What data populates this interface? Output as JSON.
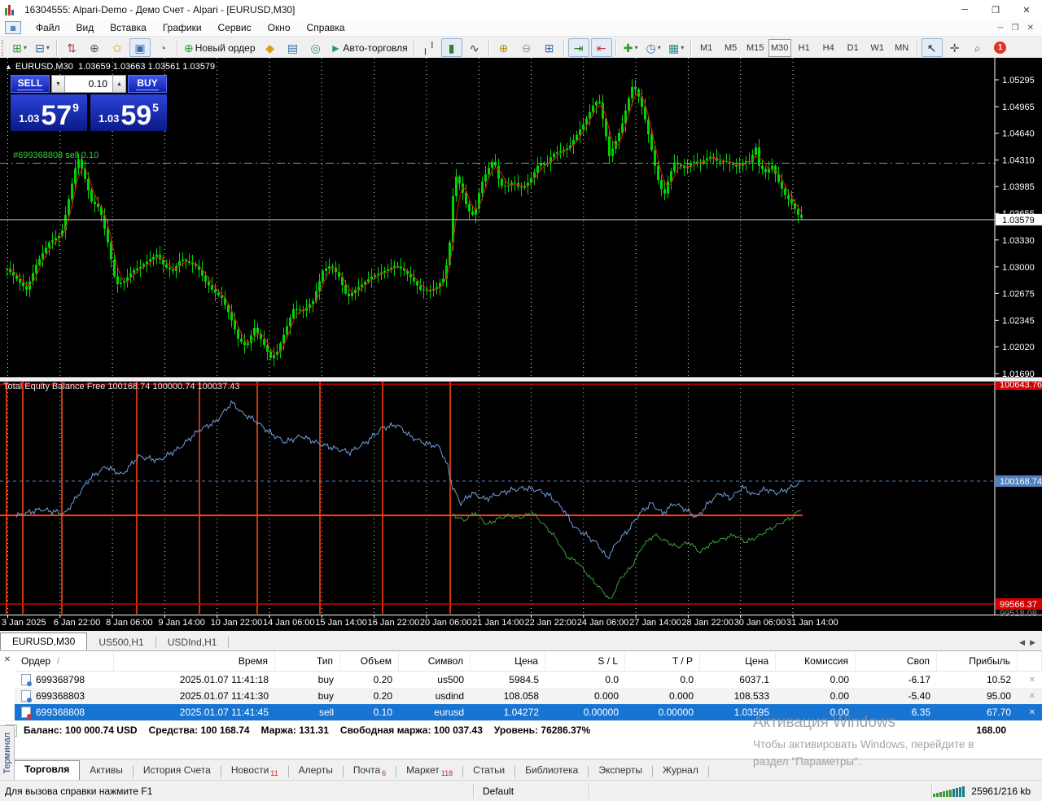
{
  "window": {
    "title": "16304555: Alpari-Demo - Демо Счет - Alpari - [EURUSD,M30]",
    "controls": {
      "minimize": "─",
      "restore": "❐",
      "close": "✕"
    }
  },
  "menu": {
    "items": [
      "Файл",
      "Вид",
      "Вставка",
      "Графики",
      "Сервис",
      "Окно",
      "Справка"
    ]
  },
  "toolbar": {
    "new_order_label": "Новый ордер",
    "auto_trading_label": "Авто-торговля",
    "timeframes": [
      "M1",
      "M5",
      "M15",
      "M30",
      "H1",
      "H4",
      "D1",
      "W1",
      "MN"
    ],
    "active_timeframe": "M30",
    "notification_count": "1"
  },
  "chart": {
    "symbol": "EURUSD,M30",
    "ohlc": "1.03659 1.03663 1.03561 1.03579",
    "position_label": "#699368808 sell 0.10",
    "trade_line_price": 1.04272,
    "current_price": 1.03579,
    "current_price_label": "1.03579",
    "price_axis_ticks": [
      "1.05295",
      "1.04965",
      "1.04640",
      "1.04310",
      "1.03985",
      "1.03655",
      "1.03330",
      "1.03000",
      "1.02675",
      "1.02345",
      "1.02020",
      "1.01690"
    ],
    "price_axis_range": {
      "max": 1.05295,
      "min": 1.0169
    },
    "time_axis": [
      "3 Jan 2025",
      "6 Jan 22:00",
      "8 Jan 06:00",
      "9 Jan 14:00",
      "10 Jan 22:00",
      "14 Jan 06:00",
      "15 Jan 14:00",
      "16 Jan 22:00",
      "20 Jan 06:00",
      "21 Jan 14:00",
      "22 Jan 22:00",
      "24 Jan 06:00",
      "27 Jan 14:00",
      "28 Jan 22:00",
      "30 Jan 06:00",
      "31 Jan 14:00"
    ],
    "candle_anchors": [
      [
        8,
        1.0298
      ],
      [
        20,
        1.0285
      ],
      [
        32,
        1.0272
      ],
      [
        45,
        1.0305
      ],
      [
        60,
        1.033
      ],
      [
        75,
        1.034
      ],
      [
        88,
        1.0402
      ],
      [
        95,
        1.0435
      ],
      [
        102,
        1.0415
      ],
      [
        112,
        1.038
      ],
      [
        122,
        1.0372
      ],
      [
        132,
        1.033
      ],
      [
        142,
        1.0278
      ],
      [
        152,
        1.0282
      ],
      [
        162,
        1.0295
      ],
      [
        172,
        1.03
      ],
      [
        182,
        1.0308
      ],
      [
        192,
        1.0315
      ],
      [
        202,
        1.03
      ],
      [
        212,
        1.0295
      ],
      [
        222,
        1.031
      ],
      [
        232,
        1.0305
      ],
      [
        242,
        1.03
      ],
      [
        252,
        1.0282
      ],
      [
        262,
        1.027
      ],
      [
        272,
        1.0262
      ],
      [
        282,
        1.024
      ],
      [
        292,
        1.0212
      ],
      [
        302,
        1.0202
      ],
      [
        312,
        1.0225
      ],
      [
        322,
        1.0208
      ],
      [
        332,
        1.0188
      ],
      [
        340,
        1.0196
      ],
      [
        350,
        1.0222
      ],
      [
        360,
        1.0248
      ],
      [
        372,
        1.0246
      ],
      [
        384,
        1.0258
      ],
      [
        396,
        1.0295
      ],
      [
        406,
        1.0302
      ],
      [
        416,
        1.0288
      ],
      [
        426,
        1.0262
      ],
      [
        436,
        1.0272
      ],
      [
        446,
        1.028
      ],
      [
        456,
        1.0288
      ],
      [
        466,
        1.0292
      ],
      [
        476,
        1.0297
      ],
      [
        486,
        1.0302
      ],
      [
        496,
        1.0295
      ],
      [
        506,
        1.0285
      ],
      [
        516,
        1.0272
      ],
      [
        526,
        1.027
      ],
      [
        536,
        1.0275
      ],
      [
        546,
        1.0288
      ],
      [
        552,
        1.033
      ],
      [
        558,
        1.0415
      ],
      [
        566,
        1.0398
      ],
      [
        574,
        1.037
      ],
      [
        582,
        1.0362
      ],
      [
        590,
        1.04
      ],
      [
        598,
        1.0418
      ],
      [
        606,
        1.0432
      ],
      [
        614,
        1.04
      ],
      [
        622,
        1.0398
      ],
      [
        630,
        1.0405
      ],
      [
        638,
        1.0396
      ],
      [
        646,
        1.04
      ],
      [
        654,
        1.0412
      ],
      [
        662,
        1.0428
      ],
      [
        670,
        1.0424
      ],
      [
        678,
        1.0438
      ],
      [
        688,
        1.0442
      ],
      [
        698,
        1.0446
      ],
      [
        708,
        1.0462
      ],
      [
        718,
        1.0478
      ],
      [
        728,
        1.0498
      ],
      [
        735,
        1.0506
      ],
      [
        742,
        1.0472
      ],
      [
        748,
        1.0436
      ],
      [
        755,
        1.0452
      ],
      [
        763,
        1.0472
      ],
      [
        770,
        1.05
      ],
      [
        777,
        1.0524
      ],
      [
        783,
        1.0512
      ],
      [
        790,
        1.049
      ],
      [
        797,
        1.0458
      ],
      [
        804,
        1.0424
      ],
      [
        810,
        1.0398
      ],
      [
        816,
        1.039
      ],
      [
        822,
        1.0412
      ],
      [
        828,
        1.0428
      ],
      [
        835,
        1.0424
      ],
      [
        842,
        1.042
      ],
      [
        850,
        1.043
      ],
      [
        858,
        1.0426
      ],
      [
        866,
        1.0432
      ],
      [
        874,
        1.0436
      ],
      [
        882,
        1.0428
      ],
      [
        890,
        1.043
      ],
      [
        898,
        1.0426
      ],
      [
        906,
        1.0422
      ],
      [
        914,
        1.043
      ],
      [
        922,
        1.0428
      ],
      [
        927,
        1.0452
      ],
      [
        932,
        1.0424
      ],
      [
        940,
        1.0416
      ],
      [
        948,
        1.0424
      ],
      [
        956,
        1.0404
      ],
      [
        964,
        1.0388
      ],
      [
        972,
        1.0378
      ],
      [
        980,
        1.0364
      ],
      [
        986,
        1.0358
      ]
    ],
    "colors": {
      "candle": "#00d400",
      "ma_line": "#e81212",
      "grid": "#ffffff",
      "trade_line": "#2fce4a",
      "current_line": "#b9c7d6"
    }
  },
  "trade_panel": {
    "sell_label": "SELL",
    "buy_label": "BUY",
    "volume": "0.10",
    "sell_prefix": "1.03",
    "sell_big": "57",
    "sell_sup": "9",
    "buy_prefix": "1.03",
    "buy_big": "59",
    "buy_sup": "5",
    "spin_down": "▼",
    "spin_up": "▲"
  },
  "equity_pane": {
    "label": "Total Equity Balance Free 100168.74 100000.74 100037.43",
    "max_line": {
      "value": 100643.76,
      "label": "100643.76"
    },
    "min_line": {
      "value": 99566.37,
      "label": "99566.37"
    },
    "equity_line": {
      "value": 100168.74,
      "label": "100168.74"
    },
    "balance_value": 100000.74,
    "scale_min_label": "99518.08",
    "vertical_lines_x": [
      8,
      28,
      76,
      168,
      245,
      316,
      393,
      470,
      553
    ],
    "blue_anchors": [
      [
        20,
        100000
      ],
      [
        50,
        100030
      ],
      [
        80,
        100010
      ],
      [
        110,
        100180
      ],
      [
        130,
        100240
      ],
      [
        150,
        100200
      ],
      [
        170,
        100290
      ],
      [
        195,
        100270
      ],
      [
        220,
        100330
      ],
      [
        245,
        100420
      ],
      [
        265,
        100460
      ],
      [
        285,
        100555
      ],
      [
        298,
        100500
      ],
      [
        312,
        100470
      ],
      [
        330,
        100410
      ],
      [
        350,
        100360
      ],
      [
        370,
        100390
      ],
      [
        390,
        100355
      ],
      [
        410,
        100330
      ],
      [
        430,
        100310
      ],
      [
        450,
        100360
      ],
      [
        470,
        100430
      ],
      [
        488,
        100445
      ],
      [
        505,
        100385
      ],
      [
        522,
        100355
      ],
      [
        540,
        100335
      ],
      [
        550,
        100240
      ],
      [
        556,
        100140
      ],
      [
        566,
        100060
      ],
      [
        580,
        100110
      ],
      [
        596,
        100080
      ],
      [
        612,
        100105
      ],
      [
        628,
        100125
      ],
      [
        644,
        100135
      ],
      [
        660,
        100125
      ],
      [
        676,
        100095
      ],
      [
        692,
        100030
      ],
      [
        706,
        99940
      ],
      [
        720,
        99905
      ],
      [
        734,
        99860
      ],
      [
        746,
        99790
      ],
      [
        758,
        99870
      ],
      [
        772,
        99930
      ],
      [
        786,
        100010
      ],
      [
        800,
        100060
      ],
      [
        814,
        100010
      ],
      [
        828,
        100060
      ],
      [
        842,
        100030
      ],
      [
        856,
        99990
      ],
      [
        870,
        100060
      ],
      [
        884,
        100110
      ],
      [
        898,
        100085
      ],
      [
        912,
        100140
      ],
      [
        926,
        100100
      ],
      [
        940,
        100130
      ],
      [
        954,
        100110
      ],
      [
        968,
        100130
      ],
      [
        978,
        100150
      ],
      [
        985,
        100168.74
      ]
    ],
    "green_anchors": [
      [
        556,
        100005
      ],
      [
        570,
        99975
      ],
      [
        584,
        100015
      ],
      [
        598,
        99955
      ],
      [
        612,
        99985
      ],
      [
        626,
        100000
      ],
      [
        640,
        99990
      ],
      [
        654,
        100015
      ],
      [
        668,
        99955
      ],
      [
        682,
        99895
      ],
      [
        696,
        99800
      ],
      [
        710,
        99770
      ],
      [
        724,
        99700
      ],
      [
        738,
        99640
      ],
      [
        750,
        99585
      ],
      [
        762,
        99690
      ],
      [
        776,
        99750
      ],
      [
        790,
        99855
      ],
      [
        804,
        99905
      ],
      [
        818,
        99875
      ],
      [
        832,
        99845
      ],
      [
        846,
        99870
      ],
      [
        860,
        99820
      ],
      [
        874,
        99865
      ],
      [
        888,
        99885
      ],
      [
        902,
        99905
      ],
      [
        916,
        99870
      ],
      [
        930,
        99895
      ],
      [
        944,
        99930
      ],
      [
        958,
        99960
      ],
      [
        972,
        99990
      ],
      [
        985,
        100037.43
      ]
    ],
    "colors": {
      "blue_line": "#6f9fd8",
      "green_line": "#3aa03a",
      "orange": "#ff4010",
      "red": "#d40000",
      "blue_box": "#4f81bd"
    }
  },
  "chart_tabs": {
    "tabs": [
      "EURUSD,M30",
      "US500,H1",
      "USDInd,H1"
    ],
    "active": "EURUSD,M30"
  },
  "terminal": {
    "columns": [
      "Ордер",
      "Время",
      "Тип",
      "Объем",
      "Символ",
      "Цена",
      "S / L",
      "T / P",
      "Цена",
      "Комиссия",
      "Своп",
      "Прибыль"
    ],
    "sort_indicator": "/",
    "rows": [
      {
        "cells": [
          "699368798",
          "2025.01.07 11:41:18",
          "buy",
          "0.20",
          "us500",
          "5984.5",
          "0.0",
          "0.0",
          "6037.1",
          "0.00",
          "-6.17",
          "10.52"
        ],
        "selected": false,
        "dot": "#2f7fe8"
      },
      {
        "cells": [
          "699368803",
          "2025.01.07 11:41:30",
          "buy",
          "0.20",
          "usdind",
          "108.058",
          "0.000",
          "0.000",
          "108.533",
          "0.00",
          "-5.40",
          "95.00"
        ],
        "selected": false,
        "dot": "#2f7fe8"
      },
      {
        "cells": [
          "699368808",
          "2025.01.07 11:41:45",
          "sell",
          "0.10",
          "eurusd",
          "1.04272",
          "0.00000",
          "0.00000",
          "1.03595",
          "0.00",
          "6.35",
          "67.70"
        ],
        "selected": true,
        "dot": "#e03030"
      }
    ],
    "row_close": "✕",
    "balance_row": {
      "items": [
        "Баланс: 100 000.74 USD",
        "Средства: 100 168.74",
        "Маржа: 131.31",
        "Свободная маржа: 100 037.43",
        "Уровень: 76286.37%"
      ],
      "right_value": "168.00"
    },
    "tabs": [
      {
        "label": "Торговля",
        "active": true
      },
      {
        "label": "Активы"
      },
      {
        "label": "История Счета"
      },
      {
        "label": "Новости",
        "badge": "11"
      },
      {
        "label": "Алерты"
      },
      {
        "label": "Почта",
        "badge": "6"
      },
      {
        "label": "Маркет",
        "badge": "118"
      },
      {
        "label": "Статьи"
      },
      {
        "label": "Библиотека"
      },
      {
        "label": "Эксперты"
      },
      {
        "label": "Журнал"
      }
    ],
    "side_label": "Терминал",
    "close_label": "✕"
  },
  "status_bar": {
    "help_text": "Для вызова справки нажмите F1",
    "profile": "Default",
    "traffic": "25961/216 kb"
  },
  "watermark": {
    "line1": "Активация Windows",
    "line2": "Чтобы активировать Windows, перейдите в",
    "line3": "раздел \"Параметры\"."
  }
}
